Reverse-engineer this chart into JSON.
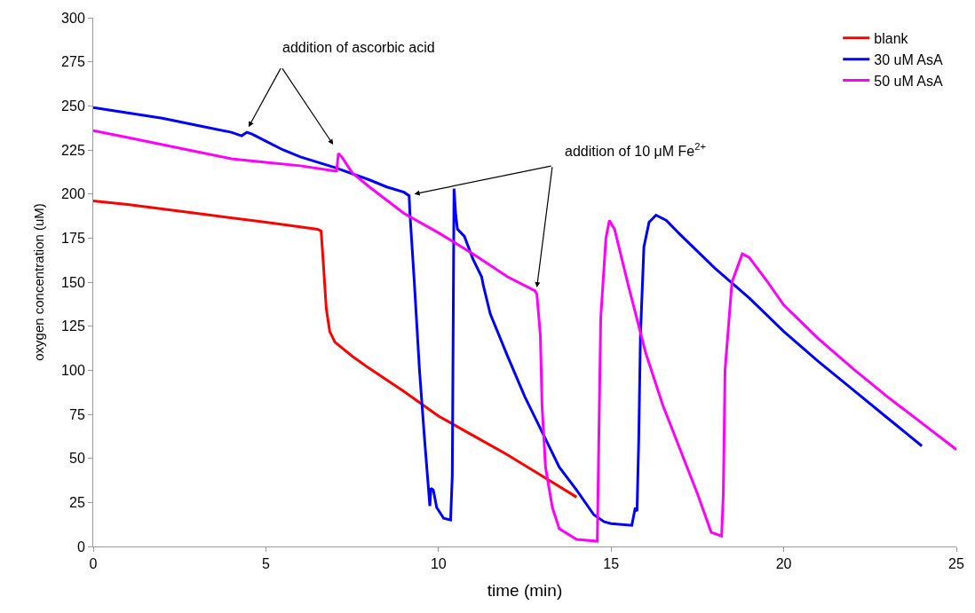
{
  "chart_data": {
    "type": "line",
    "xlabel": "time (min)",
    "ylabel": "oxygen concentration (uM)",
    "xlim": [
      0,
      25
    ],
    "xticks": [
      0,
      5,
      10,
      15,
      20,
      25
    ],
    "ylim": [
      0,
      300
    ],
    "yticks": [
      0,
      25,
      50,
      75,
      100,
      125,
      150,
      175,
      200,
      225,
      250,
      275,
      300
    ],
    "legend": "top right",
    "marker": "none",
    "line_style": "solid",
    "annotations": [
      {
        "text": "addition of ascorbic acid",
        "x": 4.5,
        "y": 238
      },
      {
        "text": "addition of 10 μM Fe$^{2+}$",
        "x": 9.3,
        "y": 200
      }
    ],
    "series": [
      {
        "name": "blank",
        "color": "#ff0000",
        "x": [
          0,
          1,
          3,
          5,
          6.5,
          6.6,
          6.65,
          6.75,
          6.85,
          7,
          7.5,
          8,
          9,
          10,
          11,
          12,
          13,
          14
        ],
        "values": [
          196,
          194,
          189,
          184,
          180,
          179,
          165,
          135,
          122,
          116,
          108,
          101,
          88,
          74,
          63,
          52,
          40,
          28
        ]
      },
      {
        "name": "30 uM AsA",
        "color": "#0000ff",
        "x": [
          0,
          1,
          2,
          3,
          4,
          4.3,
          4.45,
          4.6,
          5,
          5.5,
          6,
          7,
          8,
          8.5,
          9,
          9.15,
          9.17,
          9.3,
          9.45,
          9.6,
          9.75,
          9.78,
          9.85,
          9.95,
          10.15,
          10.35,
          10.4,
          10.45,
          10.5,
          10.55,
          10.75,
          11,
          11.25,
          11.3,
          11.5,
          12,
          12.5,
          13,
          13.5,
          14,
          14.5,
          14.8,
          15,
          15.6,
          15.7,
          15.75,
          15.8,
          15.85,
          15.95,
          16.1,
          16.3,
          16.6,
          17,
          18,
          19,
          20,
          21,
          22,
          23,
          24
        ],
        "values": [
          249,
          246,
          243,
          239,
          235,
          233,
          235,
          234,
          230,
          225,
          221,
          215,
          208,
          204,
          201,
          199,
          190,
          150,
          100,
          60,
          23,
          33,
          32,
          22,
          16,
          15,
          40,
          203,
          188,
          180,
          176,
          163,
          153,
          148,
          132,
          108,
          85,
          65,
          45,
          32,
          18,
          14,
          13,
          12,
          22,
          20,
          60,
          120,
          170,
          184,
          188,
          185,
          177,
          158,
          141,
          122,
          105,
          89,
          73,
          57
        ]
      },
      {
        "name": "50 uM AsA",
        "color": "#ff00ff",
        "x": [
          0,
          1,
          2,
          3,
          4,
          5,
          6,
          7,
          7.05,
          7.1,
          7.2,
          7.5,
          8,
          9,
          10,
          11,
          12,
          12.8,
          12.85,
          12.95,
          13,
          13.1,
          13.3,
          13.5,
          14,
          14.6,
          14.62,
          14.7,
          14.85,
          14.95,
          15.1,
          15.5,
          16,
          16.5,
          17,
          17.5,
          17.9,
          18.2,
          18.25,
          18.3,
          18.5,
          18.8,
          19,
          19.5,
          20,
          21,
          22,
          23,
          24,
          25
        ],
        "values": [
          236,
          232,
          228,
          224,
          220,
          218,
          216,
          213,
          213,
          223,
          221,
          212,
          204,
          189,
          178,
          166,
          153,
          145,
          143,
          120,
          80,
          45,
          22,
          10,
          4,
          3,
          30,
          130,
          175,
          185,
          180,
          148,
          110,
          80,
          55,
          30,
          8,
          6,
          30,
          100,
          150,
          166,
          164,
          151,
          137,
          118,
          101,
          85,
          70,
          55
        ]
      }
    ]
  }
}
